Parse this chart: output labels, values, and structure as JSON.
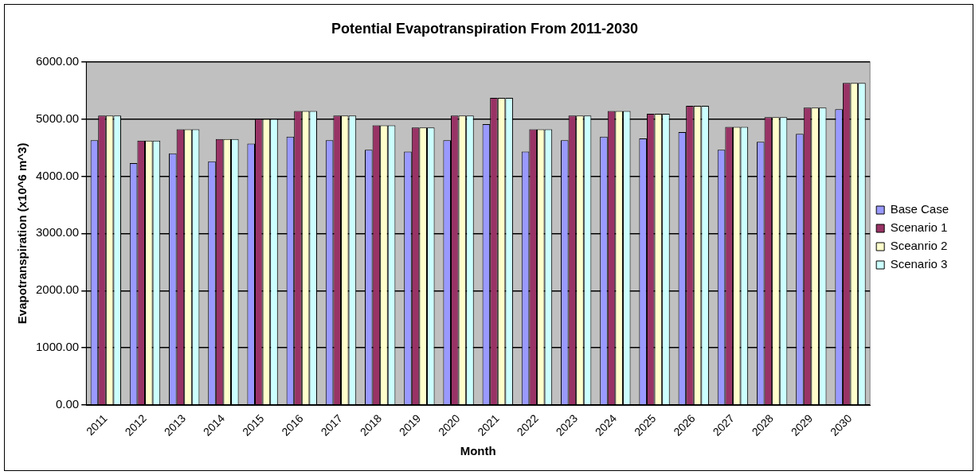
{
  "chart_data": {
    "type": "bar",
    "title": "Potential Evapotranspiration From 2011-2030",
    "xlabel": "Month",
    "ylabel": "Evapotranspiration (x10^6 m^3)",
    "categories": [
      "2011",
      "2012",
      "2013",
      "2014",
      "2015",
      "2016",
      "2017",
      "2018",
      "2019",
      "2020",
      "2021",
      "2022",
      "2023",
      "2024",
      "2025",
      "2026",
      "2027",
      "2028",
      "2029",
      "2030"
    ],
    "series": [
      {
        "name": "Base Case",
        "color": "#9999ff",
        "values": [
          4630,
          4230,
          4400,
          4260,
          4570,
          4690,
          4630,
          4460,
          4430,
          4630,
          4910,
          4430,
          4630,
          4690,
          4660,
          4770,
          4460,
          4600,
          4740,
          5170
        ]
      },
      {
        "name": "Scenario 1",
        "color": "#993366",
        "values": [
          5060,
          4620,
          4820,
          4650,
          5000,
          5140,
          5060,
          4890,
          4850,
          5060,
          5370,
          4820,
          5060,
          5140,
          5090,
          5230,
          4860,
          5030,
          5200,
          5630
        ]
      },
      {
        "name": "Sceanrio 2",
        "color": "#ffffcc",
        "values": [
          5060,
          4620,
          4820,
          4650,
          5000,
          5140,
          5060,
          4890,
          4850,
          5060,
          5370,
          4820,
          5060,
          5140,
          5090,
          5230,
          4860,
          5030,
          5200,
          5630
        ]
      },
      {
        "name": "Scenario 3",
        "color": "#ccffff",
        "values": [
          5060,
          4620,
          4820,
          4650,
          5000,
          5140,
          5060,
          4890,
          4850,
          5060,
          5370,
          4820,
          5060,
          5140,
          5090,
          5230,
          4860,
          5030,
          5200,
          5630
        ]
      }
    ],
    "ylim": [
      0,
      6000
    ],
    "yticks": [
      {
        "value": 0,
        "label": "0.00"
      },
      {
        "value": 1000,
        "label": "1000.00"
      },
      {
        "value": 2000,
        "label": "2000.00"
      },
      {
        "value": 3000,
        "label": "3000.00"
      },
      {
        "value": 4000,
        "label": "4000.00"
      },
      {
        "value": 5000,
        "label": "5000.00"
      },
      {
        "value": 6000,
        "label": "6000.00"
      }
    ],
    "grid": "y",
    "legend": "right"
  }
}
